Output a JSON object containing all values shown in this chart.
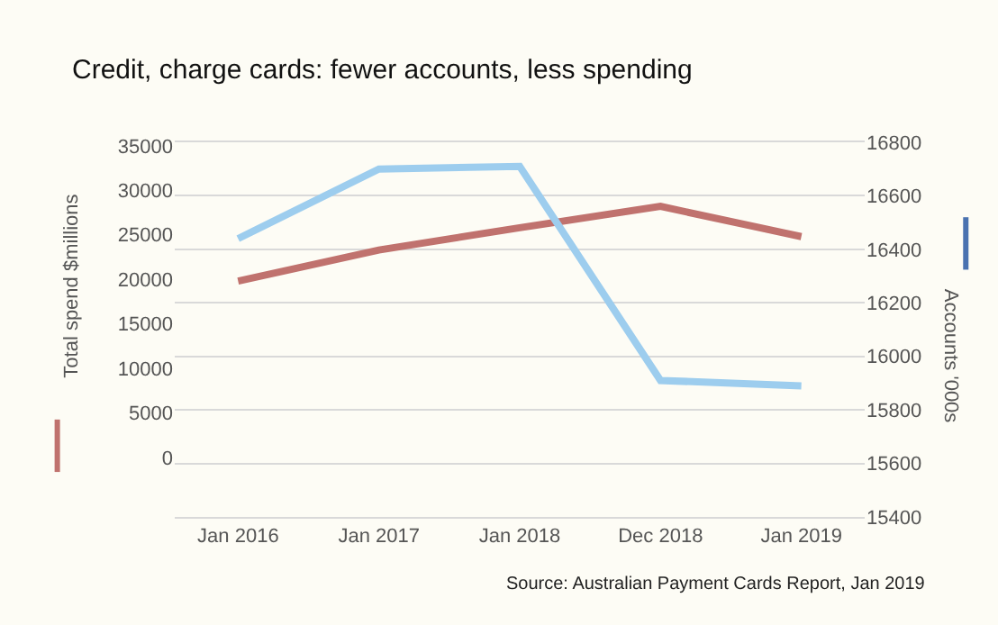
{
  "chart_data": {
    "type": "line",
    "title": "Credit, charge cards: fewer accounts, less spending",
    "categories": [
      "Jan 2016",
      "Jan 2017",
      "Jan 2018",
      "Dec 2018",
      "Jan 2019"
    ],
    "series": [
      {
        "color": "#c0726e",
        "values": [
          19800,
          23300,
          25800,
          28200,
          24800
        ]
      },
      {
        "color": "#9dcdee",
        "axis": "y2",
        "values": [
          16440,
          16700,
          16710,
          15910,
          15890
        ]
      }
    ],
    "ylabel": "Total spend $millions",
    "y2label": "Accounts '000s",
    "ylim": [
      -6700,
      35400
    ],
    "yticks": [
      0,
      5000,
      10000,
      15000,
      20000,
      25000,
      30000,
      35000
    ],
    "y2lim": [
      15400,
      16800
    ],
    "y2ticks": [
      15400,
      15600,
      15800,
      16000,
      16200,
      16400,
      16600,
      16800
    ],
    "grid": true,
    "marker": "none",
    "line_style": "solid",
    "annotations": [
      "Source: Australian Payment Cards Report, Jan 2019"
    ]
  }
}
